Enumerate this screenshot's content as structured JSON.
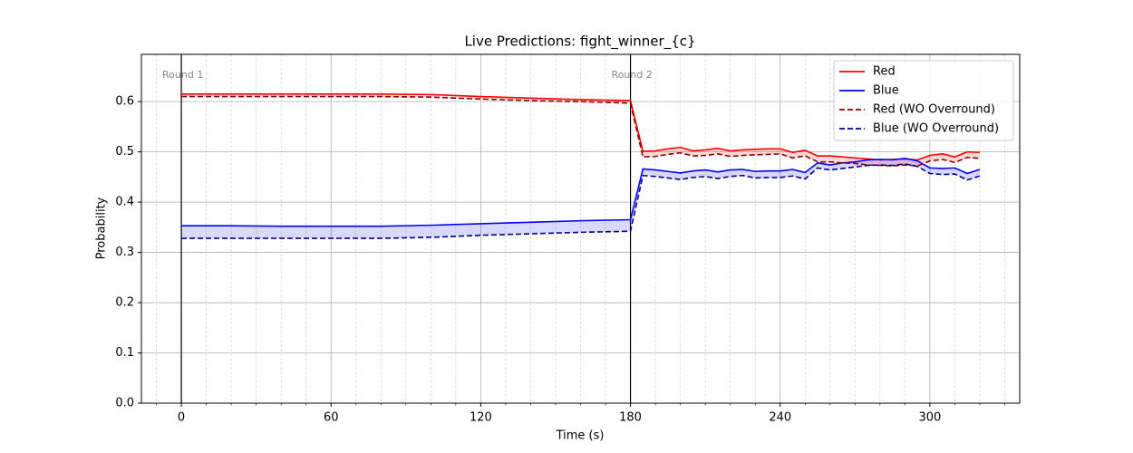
{
  "chart_data": {
    "type": "line",
    "title": "Live Predictions: fight_winner_{c}",
    "x_label": "Time (s)",
    "y_label": "Probability",
    "xlim": [
      -16,
      336
    ],
    "ylim": [
      0,
      0.694
    ],
    "xticks": [
      0,
      60,
      120,
      180,
      240,
      300
    ],
    "yticks": [
      {
        "value": 0,
        "label": "0.0"
      },
      0.1,
      0.2,
      0.3,
      0.4,
      0.5,
      0.6
    ],
    "xminorticks": [
      -10,
      10,
      20,
      30,
      40,
      50,
      70,
      80,
      90,
      100,
      110,
      130,
      140,
      150,
      160,
      170,
      190,
      200,
      210,
      220,
      230,
      250,
      260,
      270,
      280,
      290,
      310,
      320,
      330
    ],
    "grid": true,
    "minor_grid": true,
    "legend": "upper right",
    "rounds": [
      {
        "label": "Round 1",
        "start": 0
      },
      {
        "label": "Round 2",
        "start": 180
      }
    ],
    "fill_pairs": [
      [
        0,
        2
      ],
      [
        1,
        3
      ]
    ],
    "x": [
      0,
      20,
      40,
      60,
      80,
      100,
      120,
      140,
      160,
      180,
      185,
      190,
      195,
      200,
      205,
      210,
      215,
      220,
      225,
      230,
      235,
      240,
      245,
      250,
      255,
      260,
      265,
      270,
      275,
      280,
      285,
      290,
      295,
      300,
      305,
      310,
      315,
      320
    ],
    "series": [
      {
        "name": "Red",
        "color": "#ff0000",
        "style": "solid",
        "values": [
          0.615,
          0.615,
          0.615,
          0.615,
          0.615,
          0.614,
          0.61,
          0.607,
          0.604,
          0.602,
          0.501,
          0.502,
          0.506,
          0.509,
          0.502,
          0.504,
          0.507,
          0.502,
          0.504,
          0.505,
          0.506,
          0.506,
          0.499,
          0.503,
          0.492,
          0.492,
          0.49,
          0.488,
          0.486,
          0.484,
          0.485,
          0.486,
          0.484,
          0.493,
          0.496,
          0.49,
          0.5,
          0.499
        ]
      },
      {
        "name": "Blue",
        "color": "#0000ff",
        "style": "solid",
        "values": [
          0.353,
          0.353,
          0.352,
          0.352,
          0.352,
          0.354,
          0.357,
          0.36,
          0.363,
          0.365,
          0.466,
          0.464,
          0.461,
          0.458,
          0.462,
          0.464,
          0.46,
          0.464,
          0.465,
          0.461,
          0.462,
          0.462,
          0.465,
          0.459,
          0.478,
          0.474,
          0.478,
          0.48,
          0.484,
          0.485,
          0.484,
          0.487,
          0.482,
          0.468,
          0.467,
          0.468,
          0.457,
          0.465
        ]
      },
      {
        "name": "Red (WO Overround)",
        "color": "#8b0000",
        "style": "dashed",
        "values": [
          0.61,
          0.61,
          0.61,
          0.61,
          0.61,
          0.609,
          0.605,
          0.602,
          0.6,
          0.597,
          0.49,
          0.491,
          0.495,
          0.498,
          0.492,
          0.493,
          0.496,
          0.491,
          0.493,
          0.494,
          0.495,
          0.496,
          0.488,
          0.492,
          0.48,
          0.48,
          0.478,
          0.477,
          0.474,
          0.473,
          0.472,
          0.474,
          0.472,
          0.482,
          0.485,
          0.479,
          0.489,
          0.487
        ]
      },
      {
        "name": "Blue (WO Overround)",
        "color": "#00008b",
        "style": "dashed",
        "values": [
          0.328,
          0.328,
          0.328,
          0.328,
          0.328,
          0.33,
          0.334,
          0.337,
          0.34,
          0.342,
          0.453,
          0.451,
          0.448,
          0.445,
          0.449,
          0.451,
          0.447,
          0.451,
          0.453,
          0.448,
          0.449,
          0.449,
          0.452,
          0.446,
          0.468,
          0.464,
          0.467,
          0.47,
          0.473,
          0.474,
          0.473,
          0.476,
          0.471,
          0.457,
          0.455,
          0.456,
          0.444,
          0.452
        ]
      }
    ]
  }
}
